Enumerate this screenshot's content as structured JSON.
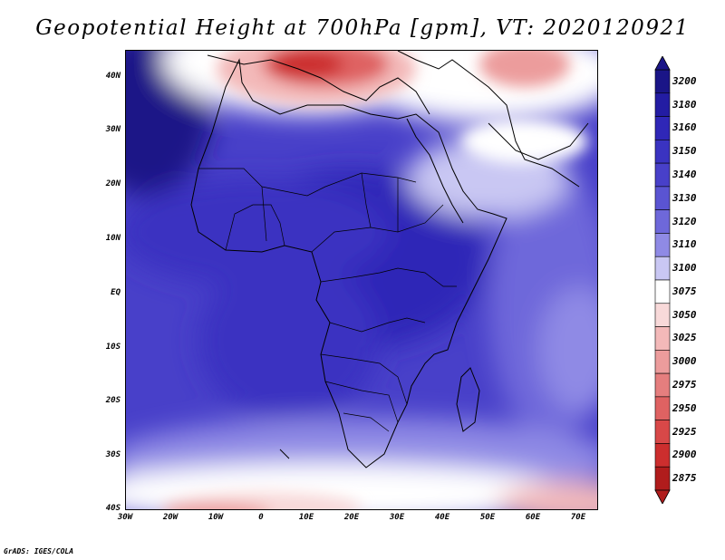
{
  "title": "Geopotential Height at 700hPa [gpm], VT: 2020120921",
  "credit": "GrADS: IGES/COLA",
  "lat_ticks": [
    "40N",
    "30N",
    "20N",
    "10N",
    "EQ",
    "10S",
    "20S",
    "30S",
    "40S"
  ],
  "lon_ticks": [
    "30W",
    "20W",
    "10W",
    "0",
    "10E",
    "20E",
    "30E",
    "40E",
    "50E",
    "60E",
    "70E"
  ],
  "colorbar": {
    "levels": [
      {
        "label": "3200",
        "color": "#1a1587"
      },
      {
        "label": "3180",
        "color": "#231ca3"
      },
      {
        "label": "3160",
        "color": "#2f27b7"
      },
      {
        "label": "3150",
        "color": "#3a33c1"
      },
      {
        "label": "3140",
        "color": "#4840c9"
      },
      {
        "label": "3130",
        "color": "#5a54d2"
      },
      {
        "label": "3120",
        "color": "#6e68da"
      },
      {
        "label": "3110",
        "color": "#8f8ae5"
      },
      {
        "label": "3100",
        "color": "#c9c7f3"
      },
      {
        "label": "3075",
        "color": "#ffffff"
      },
      {
        "label": "3050",
        "color": "#f8d9d9"
      },
      {
        "label": "3025",
        "color": "#f3b9b9"
      },
      {
        "label": "3000",
        "color": "#ec9c9c"
      },
      {
        "label": "2975",
        "color": "#e57e7e"
      },
      {
        "label": "2950",
        "color": "#df6262"
      },
      {
        "label": "2925",
        "color": "#d84848"
      },
      {
        "label": "2900",
        "color": "#cc2e2e"
      },
      {
        "label": "2875",
        "color": "#b01c1c"
      }
    ],
    "top_color": "#1a1587",
    "bottom_color": "#b01c1c"
  }
}
